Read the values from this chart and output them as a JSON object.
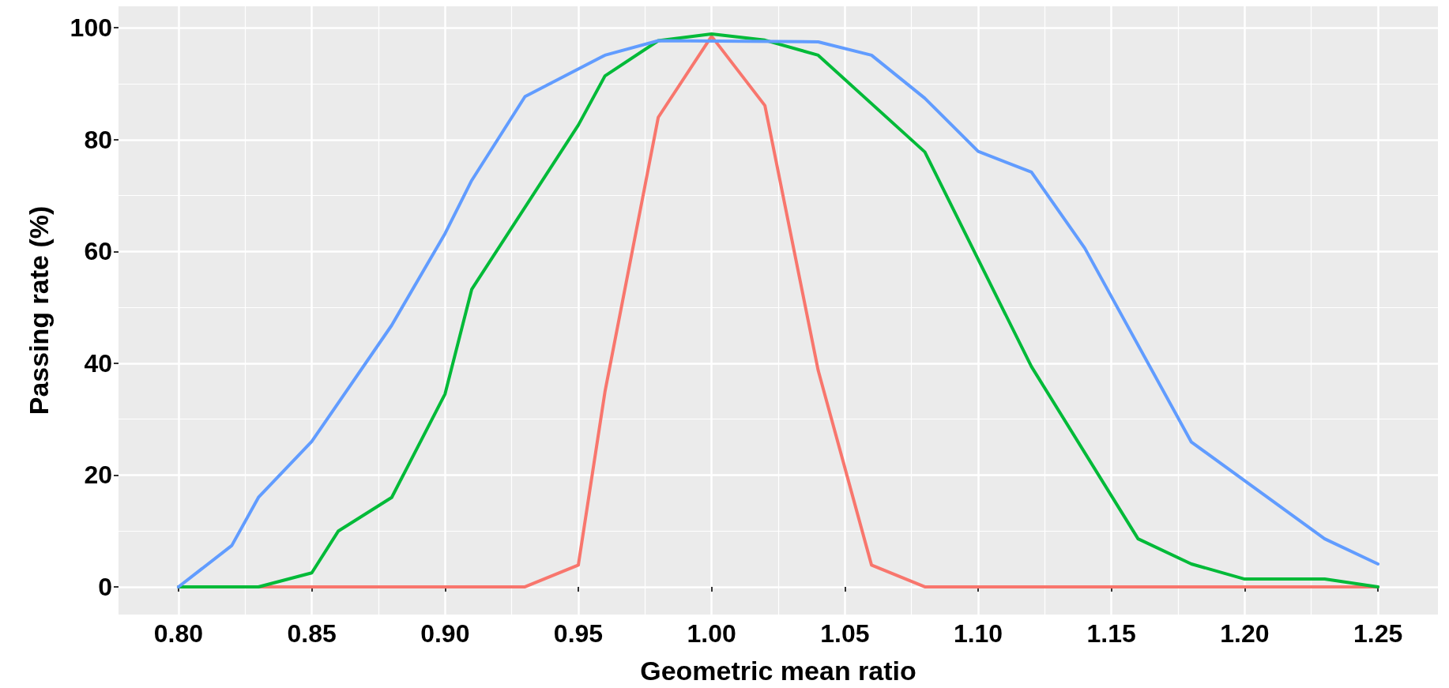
{
  "chart_data": {
    "type": "line",
    "xlabel": "Geometric mean ratio",
    "ylabel": "Passing rate (%)",
    "xlim": [
      0.7775,
      1.2725
    ],
    "xticks": [
      {
        "value": 0.8,
        "label": "0.80"
      },
      0.85,
      {
        "value": 0.9,
        "label": "0.90"
      },
      0.95,
      {
        "value": 1,
        "label": "1.00"
      },
      1.05,
      {
        "value": 1.1,
        "label": "1.10"
      },
      1.15,
      {
        "value": 1.2,
        "label": "1.20"
      },
      1.25
    ],
    "ylim": [
      -4.95,
      103.85
    ],
    "yticks": [
      0,
      20,
      40,
      60,
      80,
      100
    ],
    "grid": true,
    "marker": "none",
    "line_style": "solid",
    "series": [
      {
        "color": "#f8766d",
        "x": [
          0.8,
          0.93,
          0.95,
          0.96,
          0.98,
          1.0,
          1.02,
          1.04,
          1.06,
          1.08,
          1.25
        ],
        "values": [
          0,
          0,
          3.9,
          34.9,
          84.0,
          98.5,
          86.1,
          38.7,
          3.9,
          0,
          0
        ]
      },
      {
        "color": "#00ba38",
        "x": [
          0.8,
          0.83,
          0.85,
          0.86,
          0.88,
          0.9,
          0.91,
          0.95,
          0.96,
          0.98,
          1.0,
          1.02,
          1.04,
          1.08,
          1.12,
          1.16,
          1.18,
          1.2,
          1.23,
          1.25
        ],
        "values": [
          0,
          0,
          2.5,
          10.0,
          16.0,
          34.5,
          53.2,
          82.6,
          91.4,
          97.7,
          98.9,
          97.8,
          95.1,
          77.8,
          39.4,
          8.6,
          4.1,
          1.4,
          1.4,
          0
        ]
      },
      {
        "color": "#619cff",
        "x": [
          0.8,
          0.82,
          0.83,
          0.85,
          0.88,
          0.9,
          0.91,
          0.93,
          0.96,
          0.98,
          1.04,
          1.06,
          1.08,
          1.1,
          1.12,
          1.14,
          1.18,
          1.23,
          1.25
        ],
        "values": [
          0,
          7.4,
          16.0,
          26.0,
          46.8,
          63.2,
          72.7,
          87.7,
          95.1,
          97.7,
          97.5,
          95.1,
          87.4,
          77.9,
          74.2,
          60.6,
          25.9,
          8.6,
          4.1
        ]
      }
    ]
  }
}
